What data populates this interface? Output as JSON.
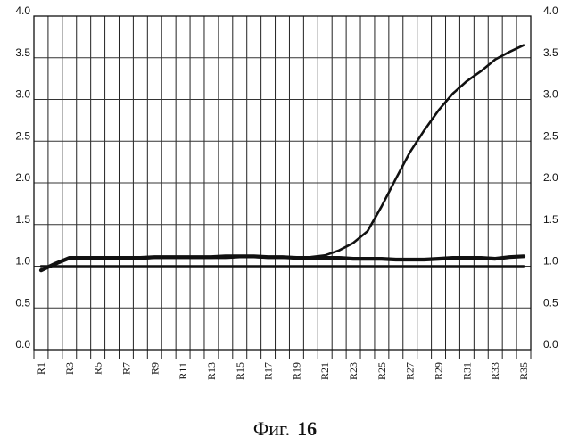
{
  "chart_data": {
    "type": "line",
    "x": [
      "R1",
      "R2",
      "R3",
      "R4",
      "R5",
      "R6",
      "R7",
      "R8",
      "R9",
      "R10",
      "R11",
      "R12",
      "R13",
      "R14",
      "R15",
      "R16",
      "R17",
      "R18",
      "R19",
      "R20",
      "R21",
      "R22",
      "R23",
      "R24",
      "R25",
      "R26",
      "R27",
      "R28",
      "R29",
      "R30",
      "R31",
      "R32",
      "R33",
      "R34",
      "R35"
    ],
    "x_tick_labels": [
      "R1",
      "R3",
      "R5",
      "R7",
      "R9",
      "R11",
      "R13",
      "R15",
      "R17",
      "R19",
      "R21",
      "R23",
      "R25",
      "R27",
      "R29",
      "R31",
      "R33",
      "R35"
    ],
    "y_ticks": [
      "0.0",
      "0.5",
      "1.0",
      "1.5",
      "2.0",
      "2.5",
      "3.0",
      "3.5",
      "4.0"
    ],
    "ylim": [
      0,
      4
    ],
    "grid": true,
    "series": [
      {
        "values": [
          0.95,
          1.02,
          1.09,
          1.09,
          1.09,
          1.09,
          1.09,
          1.09,
          1.1,
          1.1,
          1.1,
          1.1,
          1.1,
          1.1,
          1.11,
          1.11,
          1.1,
          1.1,
          1.1,
          1.11,
          1.13,
          1.19,
          1.28,
          1.42,
          1.72,
          2.05,
          2.37,
          2.63,
          2.87,
          3.07,
          3.22,
          3.34,
          3.48,
          3.57,
          3.65
        ]
      },
      {
        "values": [
          0.95,
          1.03,
          1.1,
          1.1,
          1.1,
          1.1,
          1.1,
          1.1,
          1.11,
          1.11,
          1.11,
          1.11,
          1.11,
          1.12,
          1.12,
          1.12,
          1.11,
          1.11,
          1.1,
          1.1,
          1.1,
          1.1,
          1.09,
          1.09,
          1.09,
          1.08,
          1.08,
          1.08,
          1.09,
          1.1,
          1.1,
          1.1,
          1.09,
          1.11,
          1.12
        ]
      },
      {
        "values": [
          1.0,
          1.0,
          1.0,
          1.0,
          1.0,
          1.0,
          1.0,
          1.0,
          1.0,
          1.0,
          1.0,
          1.0,
          1.0,
          1.0,
          1.0,
          1.0,
          1.0,
          1.0,
          1.0,
          1.0,
          1.0,
          1.0,
          1.0,
          1.0,
          1.0,
          1.0,
          1.0,
          1.0,
          1.0,
          1.0,
          1.0,
          1.0,
          1.0,
          1.0,
          1.0
        ]
      }
    ],
    "caption_prefix": "Фиг.",
    "caption_number": "16"
  }
}
